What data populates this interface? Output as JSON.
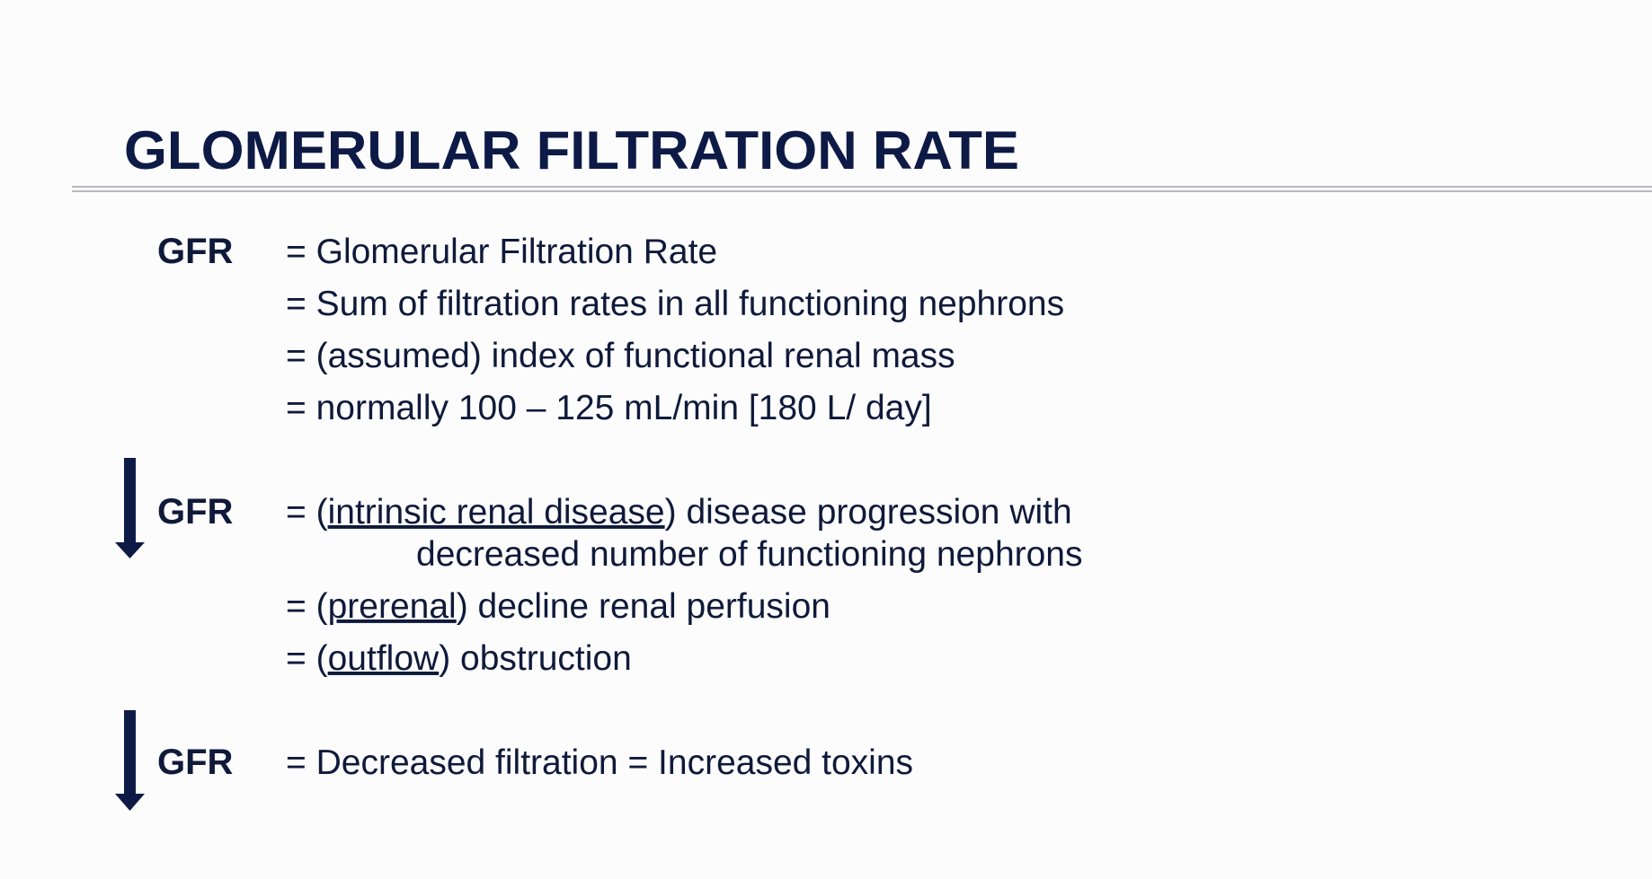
{
  "title": "GLOMERULAR FILTRATION RATE",
  "sections": [
    {
      "term": "GFR",
      "lines": [
        {
          "text": "= Glomerular Filtration Rate"
        },
        {
          "text": "= Sum of filtration rates in all functioning nephrons"
        },
        {
          "text": "= (assumed) index of functional renal mass"
        },
        {
          "text": "= normally 100 – 125 mL/min [180 L/ day]"
        }
      ]
    },
    {
      "term": "GFR",
      "lines": [
        {
          "before": "= (",
          "underlined": "intrinsic renal disease",
          "after": ") disease progression with"
        },
        {
          "text": "decreased number of functioning nephrons"
        },
        {
          "before": "= (",
          "underlined": "prerenal",
          "after": ") decline renal perfusion"
        },
        {
          "before": "= (",
          "underlined": "outflow",
          "after": ") obstruction"
        }
      ]
    },
    {
      "term": "GFR",
      "lines": [
        {
          "text": "= Decreased filtration = Increased toxins"
        }
      ]
    }
  ]
}
